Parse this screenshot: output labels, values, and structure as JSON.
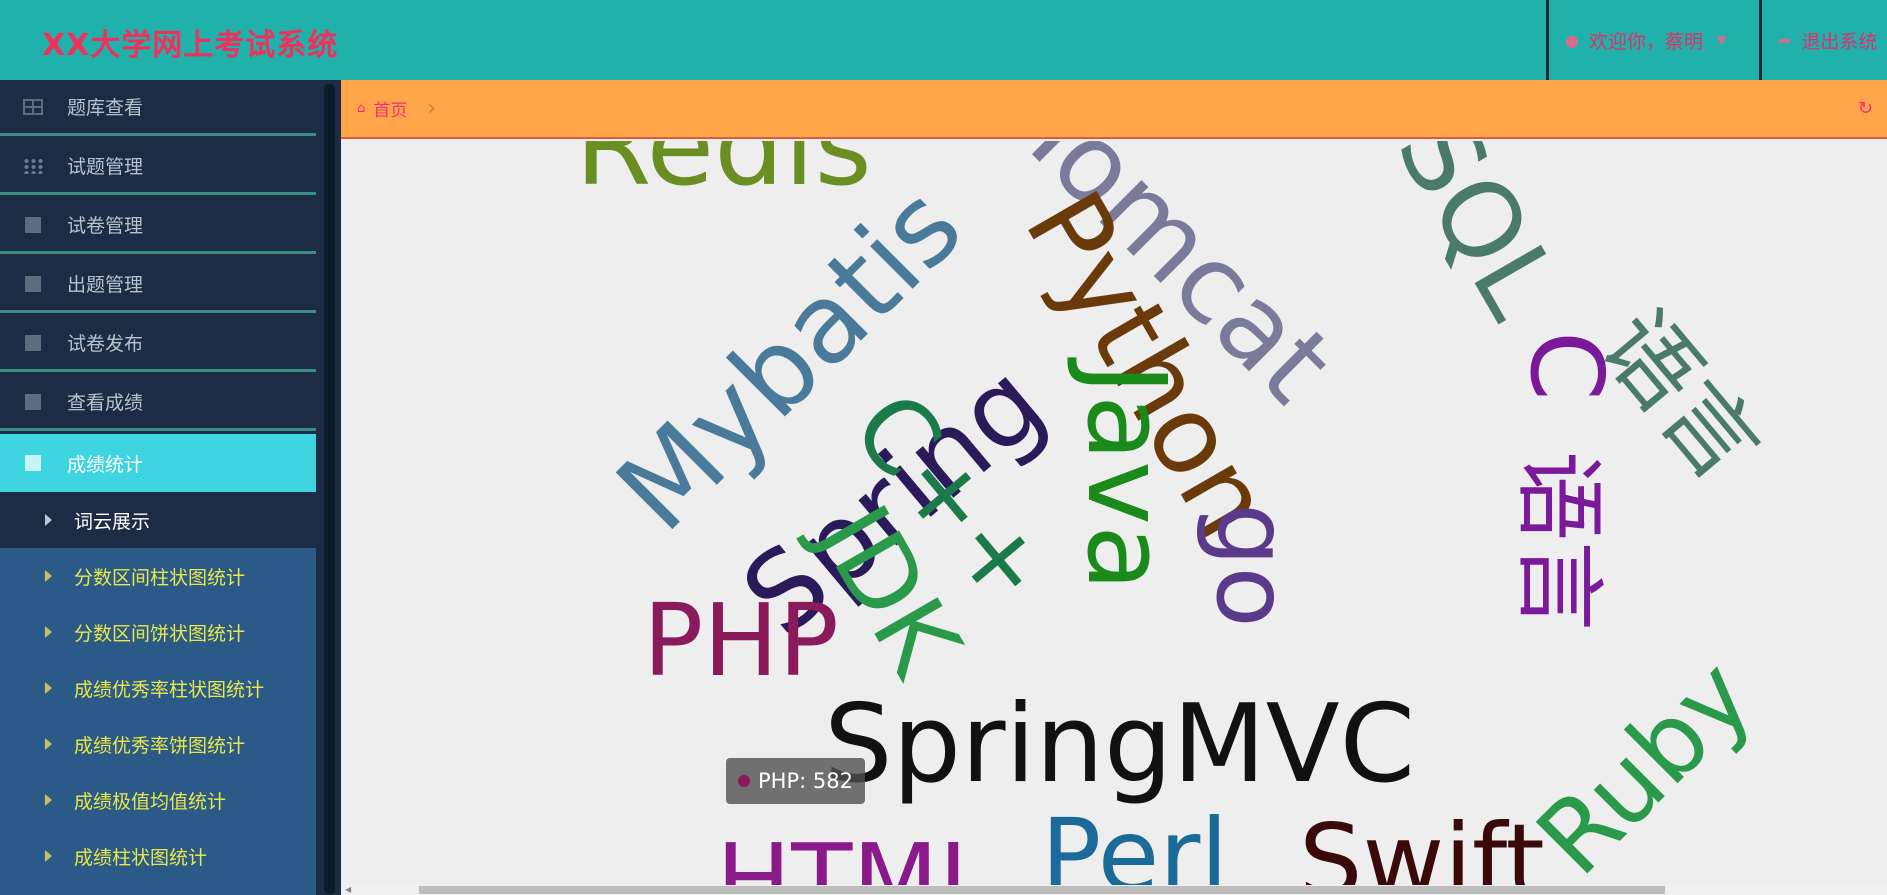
{
  "header": {
    "title": "XX大学网上考试系统",
    "user_label": "欢迎你，蔡明",
    "logout_label": "退出系统"
  },
  "sidebar": {
    "items": [
      {
        "label": "题库查看",
        "icon": "grid-icon"
      },
      {
        "label": "试题管理",
        "icon": "th-icon"
      },
      {
        "label": "试卷管理",
        "icon": "square-icon"
      },
      {
        "label": "出题管理",
        "icon": "square-icon"
      },
      {
        "label": "试卷发布",
        "icon": "square-icon"
      },
      {
        "label": "查看成绩",
        "icon": "square-icon"
      },
      {
        "label": "成绩统计",
        "icon": "square-icon",
        "active": true
      }
    ],
    "current_sub": "词云展示",
    "sub_items": [
      "分数区间柱状图统计",
      "分数区间饼状图统计",
      "成绩优秀率柱状图统计",
      "成绩优秀率饼图统计",
      "成绩极值均值统计",
      "成绩柱状图统计"
    ]
  },
  "breadcrumb": {
    "home": "首页"
  },
  "wordcloud": {
    "words": [
      {
        "text": "Redis",
        "color": "#6b8e23"
      },
      {
        "text": "Mybatis",
        "color": "#4a7a9a"
      },
      {
        "text": "Tomcat",
        "color": "#7a7a9a"
      },
      {
        "text": "SQL",
        "color": "#4a7a6a"
      },
      {
        "text": "Spring",
        "color": "#2a1a5a"
      },
      {
        "text": "Python",
        "color": "#6a3a0a"
      },
      {
        "text": "C",
        "color": "#7a1a9a"
      },
      {
        "text": "语言",
        "color": "#4a7a6a"
      },
      {
        "text": "C++",
        "color": "#1a7a4a"
      },
      {
        "text": "JDK",
        "color": "#2a9a4a"
      },
      {
        "text": "Java",
        "color": "#1a8a1a"
      },
      {
        "text": "go",
        "color": "#5a3a8a"
      },
      {
        "text": "语言",
        "color": "#7a1a9a"
      },
      {
        "text": "PHP",
        "color": "#8a1a5a"
      },
      {
        "text": "SpringMVC",
        "color": "#111111"
      },
      {
        "text": "Ruby",
        "color": "#2a9a4a"
      },
      {
        "text": "HTML",
        "color": "#8a1a8a"
      },
      {
        "text": "Perl",
        "color": "#1a6a9a"
      },
      {
        "text": "Swift",
        "color": "#3a0a0a"
      }
    ],
    "tooltip": {
      "text": "PHP: 582",
      "color": "#8a1a5a"
    }
  }
}
